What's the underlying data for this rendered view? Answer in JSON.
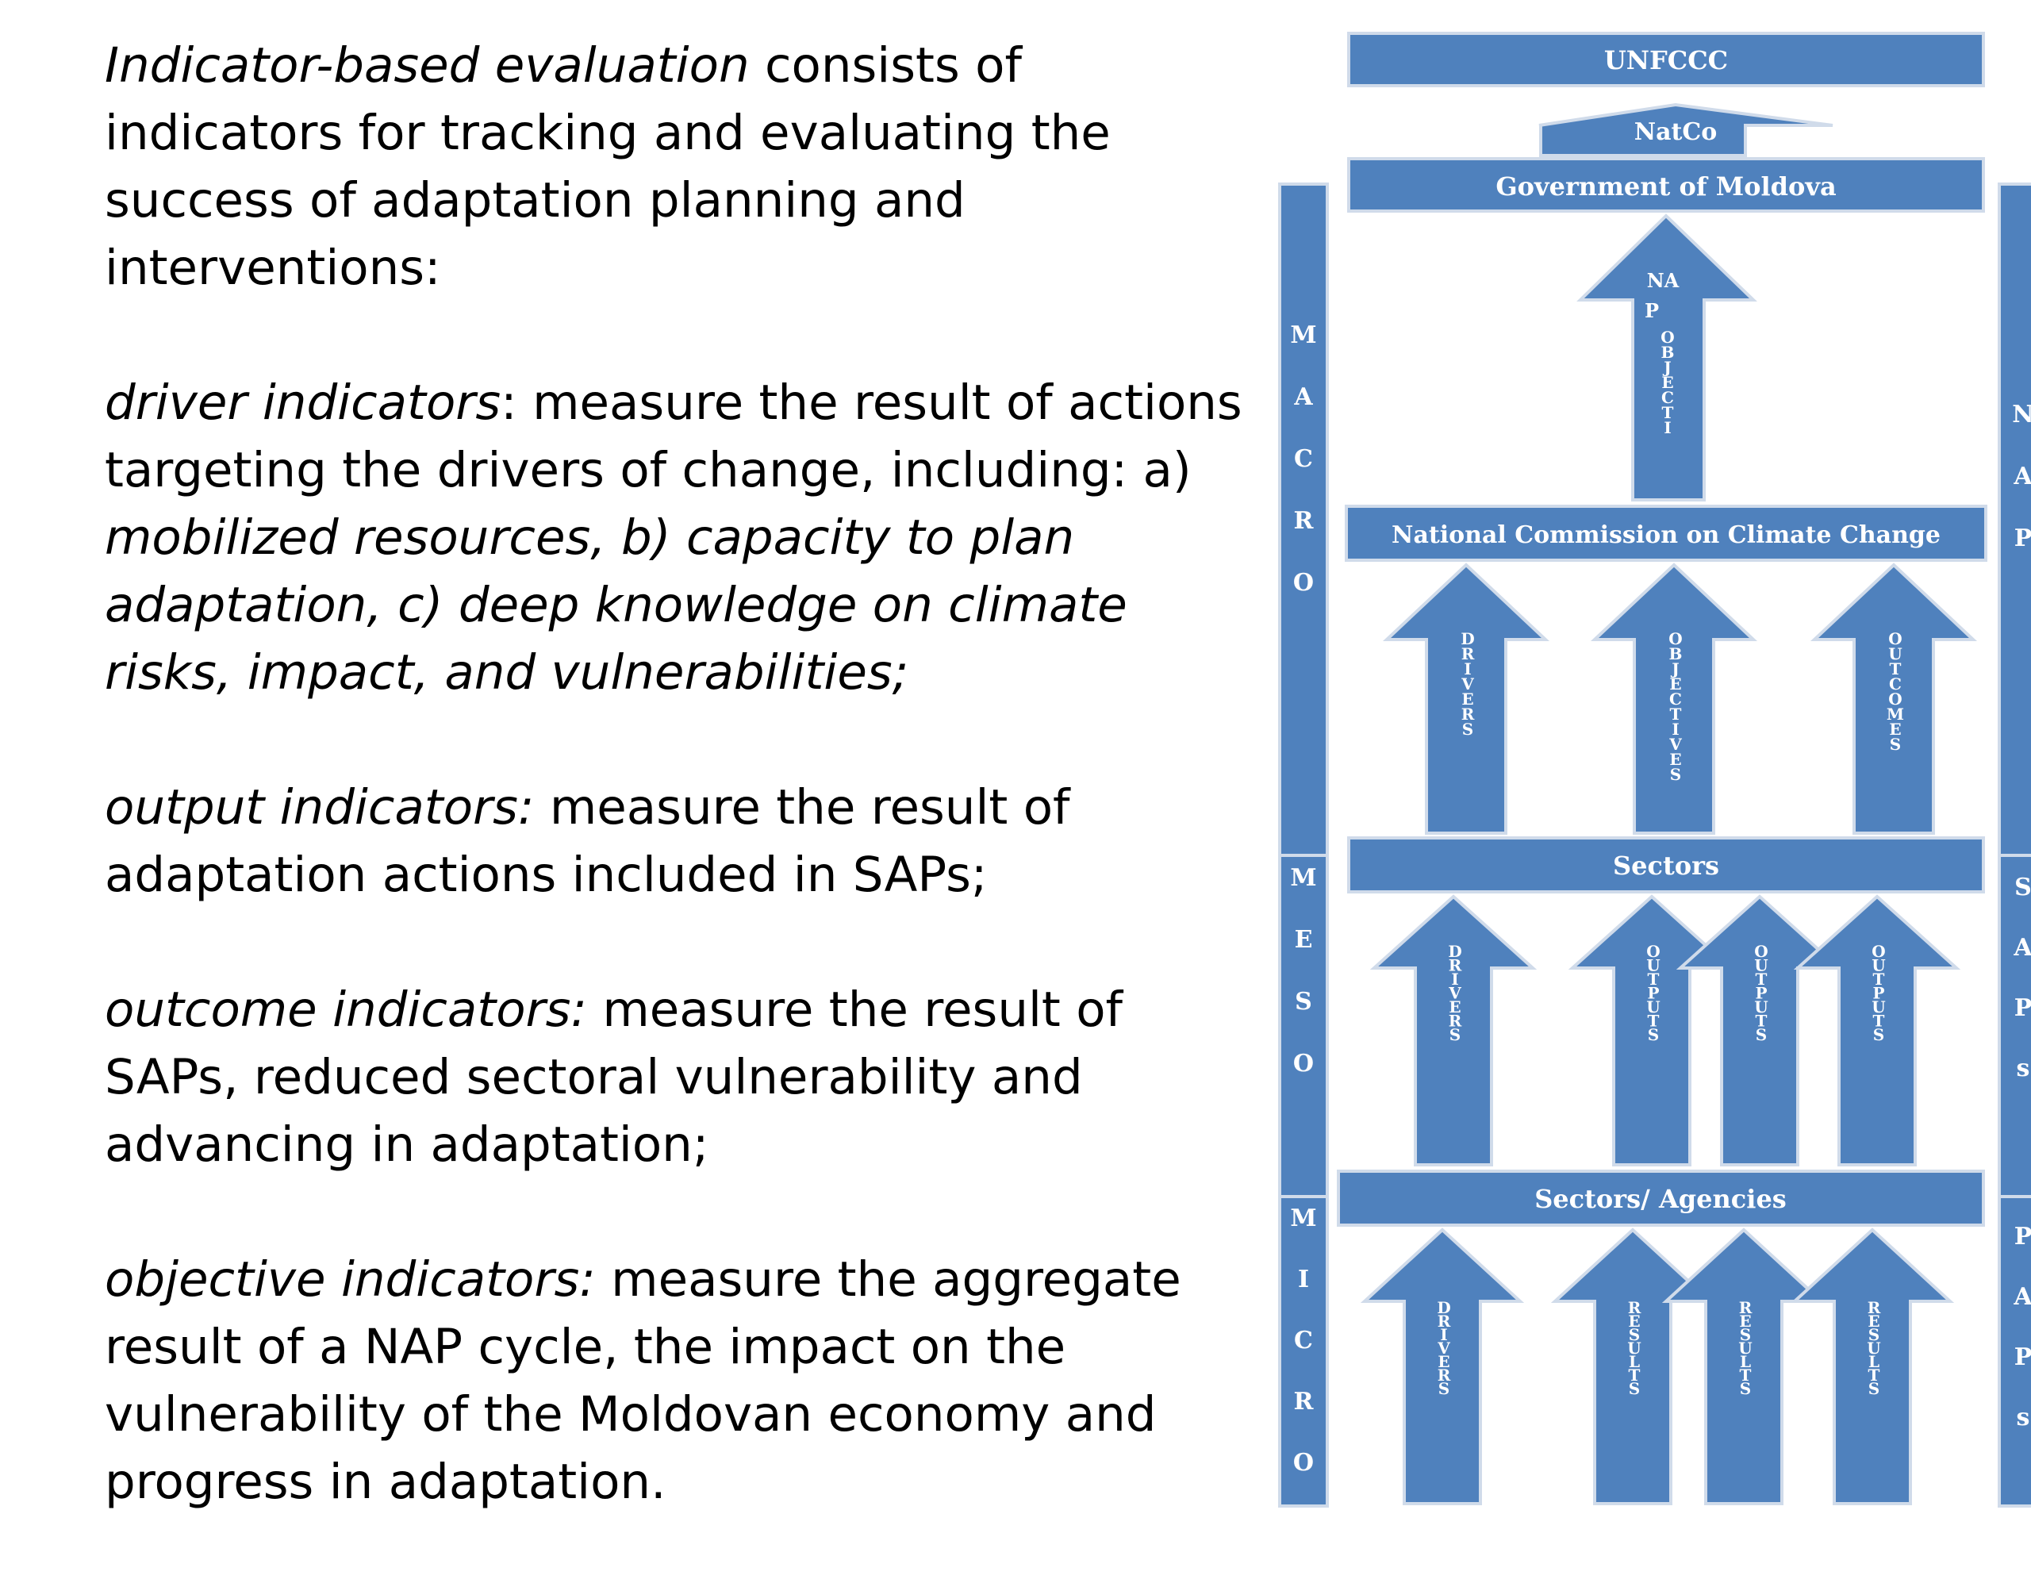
{
  "text": {
    "intro_term": "Indicator-based evaluation",
    "intro_rest": " consists of indicators for tracking and evaluating the success of adaptation planning  and  interventions:",
    "driver_term": "driver indicators",
    "driver_sep": ":  measure the result of actions targeting the drivers of change, including: a) ",
    "driver_list": "mobilized resources, b) capacity to plan adaptation, c) deep knowledge on climate risks, impact, and vulnerabilities;",
    "output_term": "output indicators:",
    "output_rest": " measure the result of adaptation actions included in SAPs;",
    "outcome_term": "outcome indicators:",
    "outcome_rest": "  measure the result of SAPs, reduced sectoral vulnerability and advancing in adaptation;",
    "objective_term": "objective indicators:",
    "objective_rest": "  measure the aggregate result of a NAP cycle,  the impact on the vulnerability of the Moldovan economy and progress in adaptation."
  },
  "diagram": {
    "colors": {
      "fill": "#4f81bd",
      "stroke": "#d0dbea",
      "text": "#ffffff"
    },
    "boxes": {
      "unfccc": "UNFCCC",
      "government": "Government of Moldova",
      "ncc": "National Commission on Climate Change",
      "sectors": "Sectors",
      "agencies": "Sectors/ Agencies"
    },
    "natco": "NatCo",
    "nap_arrow": {
      "top": "NA",
      "p": "P",
      "vertical": "OBJECTI"
    },
    "level_arrows": {
      "ncc": [
        "DRIVERS",
        "OBJECTIVES",
        "OUTCOMES"
      ],
      "sectors": [
        "DRIVERS",
        "OUTPUTS",
        "OUTPUTS",
        "OUTPUTS"
      ],
      "agencies": [
        "DRIVERS",
        "RESULTS",
        "RESULTS",
        "RESULTS"
      ]
    },
    "left_bars": [
      "MACRO",
      "MESO",
      "MICRO"
    ],
    "right_bars": [
      "NAP",
      "SAPs",
      "PAPs"
    ]
  }
}
